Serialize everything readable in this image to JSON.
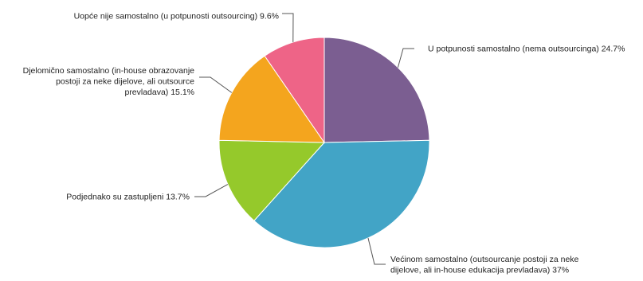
{
  "chart_data": {
    "type": "pie",
    "title": "",
    "slices": [
      {
        "label_lines": [
          "U potpunosti samostalno (nema outsourcinga) 24.7%"
        ],
        "value": 24.7,
        "color": "#7b5e91"
      },
      {
        "label_lines": [
          "Većinom samostalno (outsourcanje postoji za neke",
          "dijelove, ali in-house edukacija prevladava) 37%"
        ],
        "value": 37,
        "color": "#42a4c6"
      },
      {
        "label_lines": [
          "Podjednako su zastupljeni 13.7%"
        ],
        "value": 13.7,
        "color": "#95c92b"
      },
      {
        "label_lines": [
          "Djelomično samostalno (in-house obrazovanje",
          "postoji za neke dijelove, ali outsource",
          "prevladava) 15.1%"
        ],
        "value": 15.1,
        "color": "#f4a51e"
      },
      {
        "label_lines": [
          "Uopće nije samostalno (u potpunosti outsourcing) 9.6%"
        ],
        "value": 9.6,
        "color": "#ee6487"
      }
    ]
  }
}
